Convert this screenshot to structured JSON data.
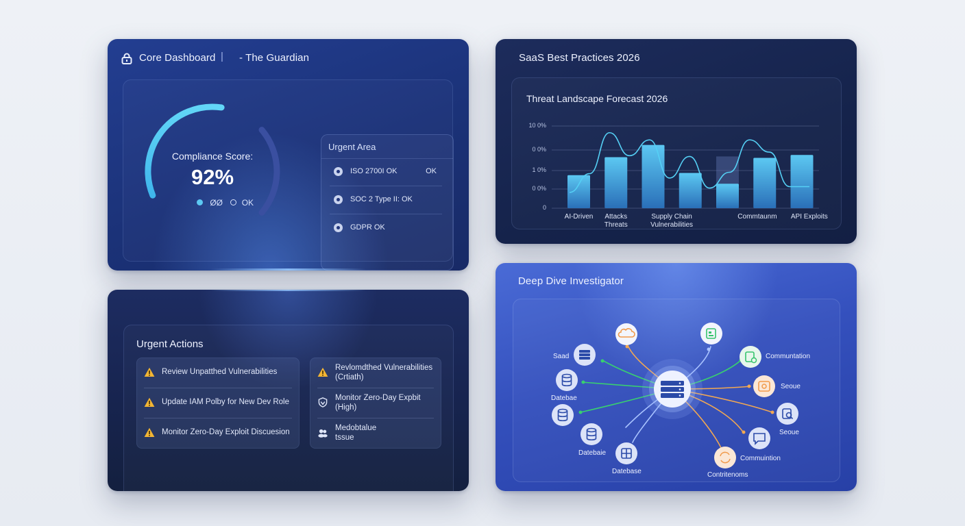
{
  "core": {
    "title": "Core Dashboard",
    "separator": "|",
    "subtitle": "- The Guardian",
    "score_label": "Compliance Score:",
    "score_value": "92%",
    "score_fraction": 0.92,
    "legend_a": "ØØ",
    "legend_b": "OK",
    "urgent_title": "Urgent Area",
    "urgent_items": [
      {
        "label": "ISO 2700I OK",
        "status": "OK"
      },
      {
        "label": "SOC 2 Type II:  OK",
        "status": ""
      },
      {
        "label": "GDPR OK",
        "status": ""
      }
    ]
  },
  "saas": {
    "title": "SaaS Best Practices 2026",
    "chart_title": "Threat Landscape Forecast 2026"
  },
  "chart_data": {
    "type": "bar",
    "title": "Threat Landscape Forecast 2026",
    "y_tick_labels": [
      "10 0%",
      "0 0%",
      "1 0%",
      "0 0%",
      "0"
    ],
    "categories": [
      "AI-Driven",
      "Attacks Threats",
      "Supply Chain Vulnerabilities",
      "",
      "Commtaunm",
      "",
      "API Exploits"
    ],
    "x_labels": [
      {
        "text": "AI-Driven",
        "slot": 0
      },
      {
        "text": "Attacks\nThreats",
        "slot": 1
      },
      {
        "text": "Supply Chain Vulnerabilities",
        "slot": 2.5
      },
      {
        "text": "Commtaunm",
        "slot": 4.8
      },
      {
        "text": "API Exploits",
        "slot": 6.2
      }
    ],
    "values": [
      0.46,
      0.71,
      0.88,
      0.49,
      0.34,
      0.7,
      0.74
    ],
    "trend": [
      0.22,
      0.48,
      1.05,
      0.73,
      0.95,
      0.42,
      0.72,
      0.28,
      0.5,
      0.95,
      0.78,
      0.3,
      0.3
    ],
    "ylim": [
      0,
      1.2
    ],
    "grid": true,
    "colors": {
      "bar_top": "#5cc8f2",
      "bar_bottom": "#2a6fb8",
      "line": "#55d0f5"
    }
  },
  "actions": {
    "title": "Urgent Actions",
    "left": [
      {
        "icon": "warning-icon",
        "text": "Review Unpatthed Vulnerabilities"
      },
      {
        "icon": "warning-icon",
        "text": "Update IAM Polby for New Dev Role"
      },
      {
        "icon": "warning-icon",
        "text": "Monitor Zero-Day Exploit Discuesion"
      }
    ],
    "right": [
      {
        "icon": "warning-icon",
        "text": "Revlomdthed Vulnerabilities\n(Crtiath)"
      },
      {
        "icon": "shield-icon",
        "text": "Monitor Zero-Day Expbit\n(High)"
      },
      {
        "icon": "users-icon",
        "text": "Medobtalue\ntssue"
      }
    ]
  },
  "deep": {
    "title": "Deep Dive Investigator",
    "labels": {
      "saas": "Saad",
      "database1": "Datebae",
      "database2": "Datebaie",
      "database3": "Datebase",
      "communication1": "Communtation",
      "secure1": "Seoue",
      "secure2": "Seoue",
      "communication2": "Commuintion",
      "contributions": "Contritenoms"
    }
  },
  "colors": {
    "accent": "#4fc9f3",
    "warning": "#f2b534",
    "card_blue": "#1f3886",
    "node_orange": "#f19a4a",
    "node_green": "#35c46c"
  }
}
